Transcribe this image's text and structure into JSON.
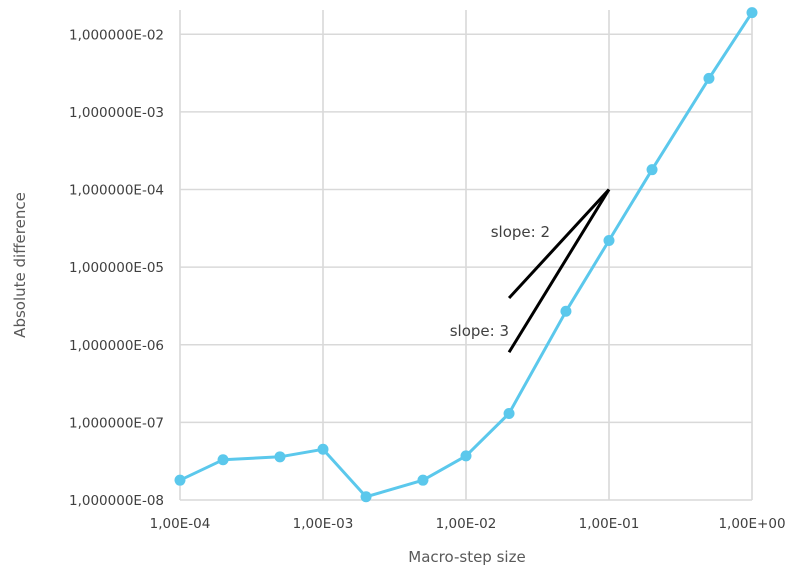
{
  "chart_data": {
    "type": "line",
    "xlabel": "Macro-step size",
    "ylabel": "Absolute difference",
    "x_scale": "log",
    "y_scale": "log",
    "xlim": [
      0.0001,
      1
    ],
    "ylim": [
      1e-08,
      0.02
    ],
    "grid": true,
    "colors": {
      "series": "#5bc8ec",
      "annotation": "#000000",
      "grid": "#d9d9d9"
    },
    "x_ticks": [
      {
        "value": 0.0001,
        "label": "1,00E-04"
      },
      {
        "value": 0.001,
        "label": "1,00E-03"
      },
      {
        "value": 0.01,
        "label": "1,00E-02"
      },
      {
        "value": 0.1,
        "label": "1,00E-01"
      },
      {
        "value": 1,
        "label": "1,00E+00"
      }
    ],
    "y_ticks": [
      {
        "value": 1e-08,
        "label": "1,000000E-08"
      },
      {
        "value": 1e-07,
        "label": "1,000000E-07"
      },
      {
        "value": 1e-06,
        "label": "1,000000E-06"
      },
      {
        "value": 1e-05,
        "label": "1,000000E-05"
      },
      {
        "value": 0.0001,
        "label": "1,000000E-04"
      },
      {
        "value": 0.001,
        "label": "1,000000E-03"
      },
      {
        "value": 0.01,
        "label": "1,000000E-02"
      }
    ],
    "series": [
      {
        "x": [
          0.0001,
          0.0002,
          0.0005,
          0.001,
          0.002,
          0.005,
          0.01,
          0.02,
          0.05,
          0.1,
          0.2,
          0.5,
          1
        ],
        "y": [
          1.8e-08,
          3.3e-08,
          3.6e-08,
          4.5e-08,
          1.1e-08,
          1.8e-08,
          3.7e-08,
          1.3e-07,
          2.7e-06,
          2.2e-05,
          0.00018,
          0.0027,
          0.019
        ]
      }
    ],
    "annotations": [
      {
        "label": "slope: 2",
        "x": [
          0.02,
          0.1
        ],
        "y": [
          4e-06,
          0.0001
        ]
      },
      {
        "label": "slope: 3",
        "x": [
          0.02,
          0.1
        ],
        "y": [
          8e-07,
          0.0001
        ]
      }
    ]
  }
}
